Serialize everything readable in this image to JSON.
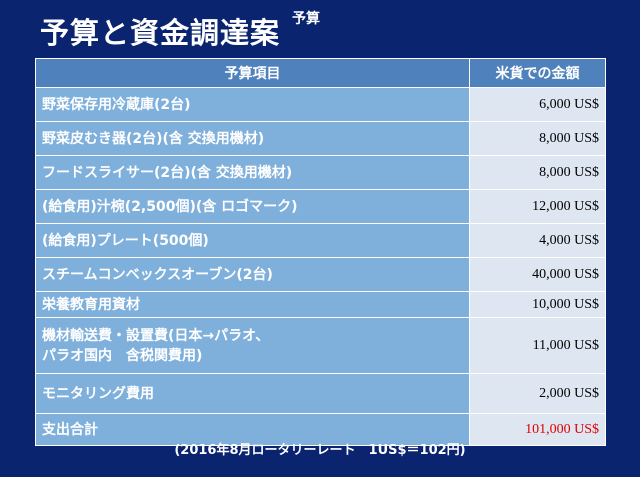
{
  "title": "予算と資金調達案",
  "title_superscript": "予算",
  "table": {
    "headers": [
      "予算項目",
      "米貨での金額"
    ],
    "rows": [
      {
        "item": "野菜保存用冷蔵庫(2台)",
        "amount": "6,000 US$"
      },
      {
        "item": "野菜皮むき器(2台)(含 交換用機材)",
        "amount": "8,000 US$"
      },
      {
        "item": "フードスライサー(2台)(含 交換用機材)",
        "amount": "8,000 US$"
      },
      {
        "item": "(給食用)汁椀(2,500個)(含 ロゴマーク)",
        "amount": "12,000 US$"
      },
      {
        "item": "(給食用)プレート(500個)",
        "amount": "4,000 US$"
      },
      {
        "item": "スチームコンベックスオーブン(2台)",
        "amount": "40,000 US$"
      },
      {
        "item": "栄養教育用資材",
        "amount": "10,000 US$"
      },
      {
        "item": "機材輸送費・設置費(日本→パラオ、\nパラオ国内　含税関費用)",
        "amount": "11,000 US$"
      },
      {
        "item": "モニタリング費用",
        "amount": "2,000 US$"
      },
      {
        "item": "支出合計",
        "amount": "101,000 US$"
      }
    ]
  },
  "footnote": "(2016年8月ロータリーレート　1US$＝102円)",
  "colors": {
    "background": "#0a2470",
    "header": "#4f81bd",
    "item_cell": "#7fb0dc",
    "amount_cell": "#dde6f1",
    "total_amount": "#e00000"
  }
}
